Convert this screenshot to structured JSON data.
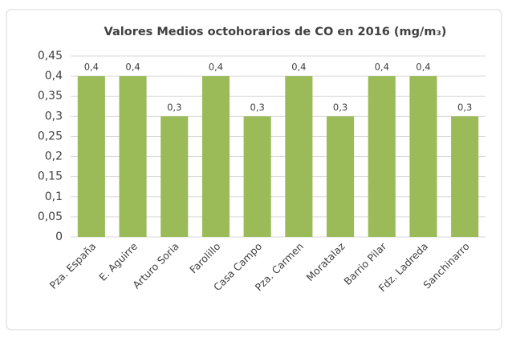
{
  "chart_data": {
    "type": "bar",
    "title": "Valores Medios octohorarios de CO en 2016 (mg/m₃)",
    "categories": [
      "Pza. España",
      "E. Aguirre",
      "Arturo Soria",
      "Farolillo",
      "Casa Campo",
      "Pza. Carmen",
      "Moratalaz",
      "Barrio Pilar",
      "Fdz. Ladreda",
      "Sanchinarro"
    ],
    "values": [
      0.4,
      0.4,
      0.3,
      0.4,
      0.3,
      0.4,
      0.3,
      0.4,
      0.4,
      0.3
    ],
    "value_labels": [
      "0,4",
      "0,4",
      "0,3",
      "0,4",
      "0,3",
      "0,4",
      "0,3",
      "0,4",
      "0,4",
      "0,3"
    ],
    "color": "#9bbb59",
    "ylim": [
      0,
      0.45
    ],
    "yticks": [
      0,
      {
        "value": 0.05,
        "label": "0,05"
      },
      {
        "value": 0.1,
        "label": "0,1"
      },
      {
        "value": 0.15,
        "label": "0,15"
      },
      {
        "value": 0.2,
        "label": "0,2"
      },
      {
        "value": 0.25,
        "label": "0,25"
      },
      {
        "value": 0.3,
        "label": "0,3"
      },
      {
        "value": 0.35,
        "label": "0,35"
      },
      {
        "value": 0.4,
        "label": "0,4"
      },
      {
        "value": 0.45,
        "label": "0,45"
      }
    ],
    "grid": true
  }
}
